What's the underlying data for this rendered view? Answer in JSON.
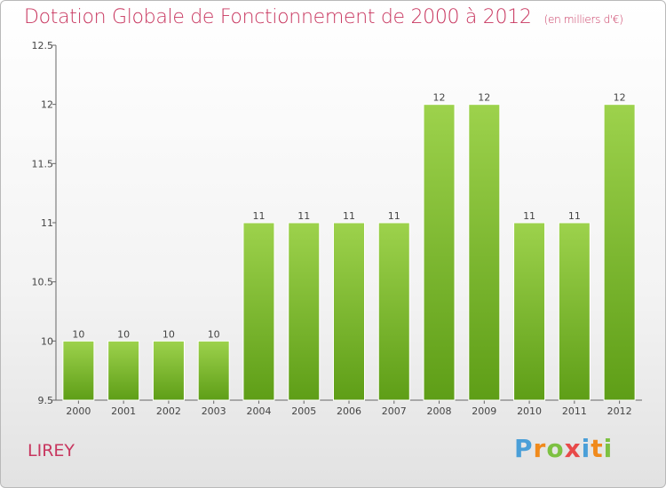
{
  "title": "Dotation Globale de Fonctionnement de 2000 à 2012",
  "unit_note": "(en milliers d'€)",
  "commune": "LIREY",
  "logo": {
    "text": "Proxiti",
    "letters": [
      "P",
      "r",
      "o",
      "x",
      "i",
      "t",
      "i"
    ],
    "colors": [
      "#4a9fd8",
      "#f08a1c",
      "#7dc142",
      "#e84a4a",
      "#4a9fd8",
      "#f08a1c",
      "#7dc142"
    ]
  },
  "chart_data": {
    "type": "bar",
    "categories": [
      "2000",
      "2001",
      "2002",
      "2003",
      "2004",
      "2005",
      "2006",
      "2007",
      "2008",
      "2009",
      "2010",
      "2011",
      "2012"
    ],
    "values": [
      10,
      10,
      10,
      10,
      11,
      11,
      11,
      11,
      12,
      12,
      11,
      11,
      12
    ],
    "value_labels": [
      "10",
      "10",
      "10",
      "10",
      "11",
      "11",
      "11",
      "11",
      "12",
      "12",
      "11",
      "11",
      "12"
    ],
    "ylim": [
      9.5,
      12.5
    ],
    "yticks": [
      9.5,
      10,
      10.5,
      11,
      11.5,
      12,
      12.5
    ],
    "ytick_labels": [
      "9.5",
      "10",
      "10.5",
      "11",
      "11.5",
      "12",
      "12.5"
    ],
    "grid": false,
    "bar_color": "#8cc63f"
  }
}
